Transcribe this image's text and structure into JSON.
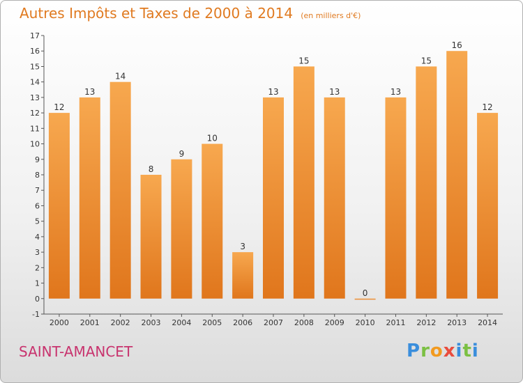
{
  "header": {
    "title": "Autres Impôts et Taxes de 2000 à 2014",
    "subtitle": "(en milliers d'€)"
  },
  "footer": {
    "town": "SAINT-AMANCET",
    "logo": "Proxiti"
  },
  "colors": {
    "bar_light": "#f7a84f",
    "bar_dark": "#e0761c",
    "title": "#e07a20",
    "town": "#c8336e"
  },
  "chart_data": {
    "type": "bar",
    "title": "Autres Impôts et Taxes de 2000 à 2014",
    "subtitle": "(en milliers d'€)",
    "categories": [
      "2000",
      "2001",
      "2002",
      "2003",
      "2004",
      "2005",
      "2006",
      "2007",
      "2008",
      "2009",
      "2010",
      "2011",
      "2012",
      "2013",
      "2014"
    ],
    "values": [
      12,
      13,
      14,
      8,
      9,
      10,
      3,
      13,
      15,
      13,
      0,
      13,
      15,
      16,
      12
    ],
    "ylim": [
      -1,
      17
    ],
    "yticks": [
      -1,
      0,
      1,
      2,
      3,
      4,
      5,
      6,
      7,
      8,
      9,
      10,
      11,
      12,
      13,
      14,
      15,
      16,
      17
    ],
    "grid": false,
    "legend": "none"
  }
}
